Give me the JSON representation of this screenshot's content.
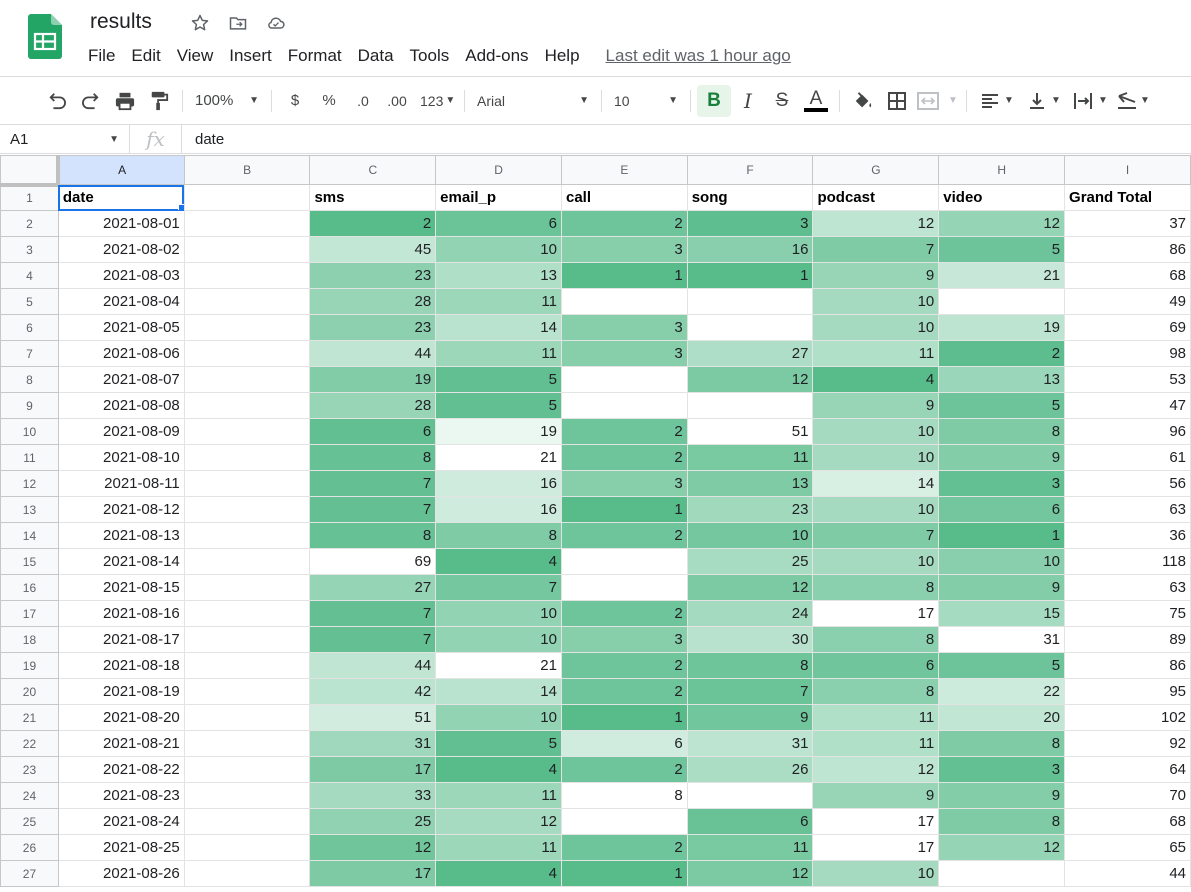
{
  "doc": {
    "title": "results"
  },
  "menu": [
    "File",
    "Edit",
    "View",
    "Insert",
    "Format",
    "Data",
    "Tools",
    "Add-ons",
    "Help"
  ],
  "last_edit": "Last edit was 1 hour ago",
  "toolbar": {
    "zoom": "100%",
    "currency": "$",
    "percent": "%",
    "decrease_decimal": ".0",
    "increase_decimal": ".00",
    "more_formats": "123",
    "font": "Arial",
    "font_size": "10",
    "bold": "B",
    "italic": "I",
    "strike": "S",
    "text_color": "A"
  },
  "formula_bar": {
    "cell_ref": "A1",
    "fx": "fx",
    "value": "date"
  },
  "columns": [
    "A",
    "B",
    "C",
    "D",
    "E",
    "F",
    "G",
    "H",
    "I"
  ],
  "headers": [
    "date",
    "",
    "sms",
    "email_p",
    "call",
    "song",
    "podcast",
    "video",
    "Grand Total"
  ],
  "rows": [
    [
      "2021-08-01",
      "",
      2,
      6,
      2,
      3,
      12,
      12,
      37
    ],
    [
      "2021-08-02",
      "",
      45,
      10,
      3,
      16,
      7,
      5,
      86
    ],
    [
      "2021-08-03",
      "",
      23,
      13,
      1,
      1,
      9,
      21,
      68
    ],
    [
      "2021-08-04",
      "",
      28,
      11,
      "",
      "",
      10,
      "",
      49
    ],
    [
      "2021-08-05",
      "",
      23,
      14,
      3,
      "",
      10,
      19,
      69
    ],
    [
      "2021-08-06",
      "",
      44,
      11,
      3,
      27,
      11,
      2,
      98
    ],
    [
      "2021-08-07",
      "",
      19,
      5,
      "",
      12,
      4,
      13,
      53
    ],
    [
      "2021-08-08",
      "",
      28,
      5,
      "",
      "",
      9,
      5,
      47
    ],
    [
      "2021-08-09",
      "",
      6,
      19,
      2,
      51,
      10,
      8,
      96
    ],
    [
      "2021-08-10",
      "",
      8,
      21,
      2,
      11,
      10,
      9,
      61
    ],
    [
      "2021-08-11",
      "",
      7,
      16,
      3,
      13,
      14,
      3,
      56
    ],
    [
      "2021-08-12",
      "",
      7,
      16,
      1,
      23,
      10,
      6,
      63
    ],
    [
      "2021-08-13",
      "",
      8,
      8,
      2,
      10,
      7,
      1,
      36
    ],
    [
      "2021-08-14",
      "",
      69,
      4,
      "",
      25,
      10,
      10,
      118
    ],
    [
      "2021-08-15",
      "",
      27,
      7,
      "",
      12,
      8,
      9,
      63
    ],
    [
      "2021-08-16",
      "",
      7,
      10,
      2,
      24,
      17,
      15,
      75
    ],
    [
      "2021-08-17",
      "",
      7,
      10,
      3,
      30,
      8,
      31,
      89
    ],
    [
      "2021-08-18",
      "",
      44,
      21,
      2,
      8,
      6,
      5,
      86
    ],
    [
      "2021-08-19",
      "",
      42,
      14,
      2,
      7,
      8,
      22,
      95
    ],
    [
      "2021-08-20",
      "",
      51,
      10,
      1,
      9,
      11,
      20,
      102
    ],
    [
      "2021-08-21",
      "",
      31,
      5,
      6,
      31,
      11,
      8,
      92
    ],
    [
      "2021-08-22",
      "",
      17,
      4,
      2,
      26,
      12,
      3,
      64
    ],
    [
      "2021-08-23",
      "",
      33,
      11,
      8,
      "",
      9,
      9,
      70
    ],
    [
      "2021-08-24",
      "",
      25,
      12,
      "",
      6,
      17,
      8,
      68
    ],
    [
      "2021-08-25",
      "",
      12,
      11,
      2,
      11,
      17,
      12,
      65
    ],
    [
      "2021-08-26",
      "",
      17,
      4,
      1,
      12,
      10,
      "",
      44
    ]
  ],
  "colors": {
    "scale_high": "#57bb8a",
    "scale_low": "#ffffff",
    "selection": "#1a73e8",
    "logo": "#23a566"
  }
}
